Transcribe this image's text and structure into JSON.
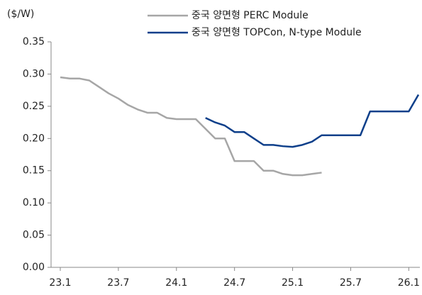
{
  "chart_data": {
    "type": "line",
    "y_label": "($/W)",
    "categories": [
      "23.1",
      null,
      null,
      null,
      null,
      null,
      "23.7",
      null,
      null,
      null,
      null,
      null,
      "24.1",
      null,
      null,
      null,
      null,
      null,
      "24.7",
      null,
      null,
      null,
      null,
      null,
      "25.1",
      null,
      null,
      null,
      null,
      null,
      "25.7",
      null,
      null,
      null,
      null,
      null,
      "26.1",
      null
    ],
    "series": [
      {
        "name": "중국 양면형 PERC Module",
        "color": "#a6a6a6",
        "values": [
          0.295,
          0.293,
          0.293,
          0.29,
          0.28,
          0.27,
          0.262,
          0.252,
          0.245,
          0.24,
          0.24,
          0.232,
          0.23,
          0.23,
          0.23,
          0.215,
          0.2,
          0.2,
          0.165,
          0.165,
          0.165,
          0.15,
          0.15,
          0.145,
          0.143,
          0.143,
          0.145,
          0.147,
          null,
          null,
          null,
          null,
          null,
          null,
          null,
          null,
          null,
          null
        ]
      },
      {
        "name": "중국 양면형 TOPCon, N-type Module",
        "color": "#0d3f8a",
        "values": [
          null,
          null,
          null,
          null,
          null,
          null,
          null,
          null,
          null,
          null,
          null,
          null,
          null,
          null,
          null,
          0.232,
          0.225,
          0.22,
          0.21,
          0.21,
          0.2,
          0.19,
          0.19,
          0.188,
          0.187,
          0.19,
          0.195,
          0.205,
          0.205,
          0.205,
          0.205,
          0.205,
          0.242,
          0.242,
          0.242,
          0.242,
          0.242,
          0.268
        ]
      }
    ],
    "ylim": [
      0,
      0.35
    ],
    "yticks": [
      {
        "value": 0,
        "label": "0.00"
      },
      0.05,
      {
        "value": 0.1,
        "label": "0.10"
      },
      0.15,
      {
        "value": 0.2,
        "label": "0.20"
      },
      0.25,
      {
        "value": 0.3,
        "label": "0.30"
      },
      0.35
    ],
    "grid": false,
    "legend": "top-right"
  }
}
